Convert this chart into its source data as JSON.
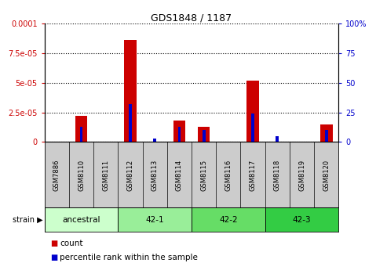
{
  "title": "GDS1848 / 1187",
  "samples": [
    "GSM7886",
    "GSM8110",
    "GSM8111",
    "GSM8112",
    "GSM8113",
    "GSM8114",
    "GSM8115",
    "GSM8116",
    "GSM8117",
    "GSM8118",
    "GSM8119",
    "GSM8120"
  ],
  "counts": [
    0,
    2.2e-05,
    0,
    8.6e-05,
    0,
    1.8e-05,
    1.3e-05,
    0,
    5.2e-05,
    0,
    0,
    1.5e-05
  ],
  "percentile": [
    0,
    13,
    0,
    32,
    3,
    13,
    10,
    0,
    24,
    5,
    0,
    10
  ],
  "ylim_left": [
    0,
    0.0001
  ],
  "ylim_right": [
    0,
    100
  ],
  "yticks_left": [
    0,
    2.5e-05,
    5e-05,
    7.5e-05,
    0.0001
  ],
  "yticks_left_labels": [
    "0",
    "2.5e-05",
    "5e-05",
    "7.5e-05",
    "0.0001"
  ],
  "yticks_right": [
    0,
    25,
    50,
    75,
    100
  ],
  "yticks_right_labels": [
    "0",
    "25",
    "50",
    "75",
    "100%"
  ],
  "bar_color_count": "#cc0000",
  "bar_color_pct": "#0000cc",
  "strain_groups": [
    {
      "label": "ancestral",
      "start": 0,
      "end": 2,
      "color": "#ccffcc"
    },
    {
      "label": "42-1",
      "start": 3,
      "end": 5,
      "color": "#99ee99"
    },
    {
      "label": "42-2",
      "start": 6,
      "end": 8,
      "color": "#66dd66"
    },
    {
      "label": "42-3",
      "start": 9,
      "end": 11,
      "color": "#33cc44"
    }
  ],
  "group_colors": [
    "#ccffcc",
    "#99ee99",
    "#66dd66",
    "#33cc44"
  ],
  "bg_color": "#ffffff",
  "tick_color_left": "#cc0000",
  "tick_color_right": "#0000cc",
  "sample_bg": "#cccccc",
  "legend_count_label": "count",
  "legend_pct_label": "percentile rank within the sample",
  "strain_label": "strain"
}
